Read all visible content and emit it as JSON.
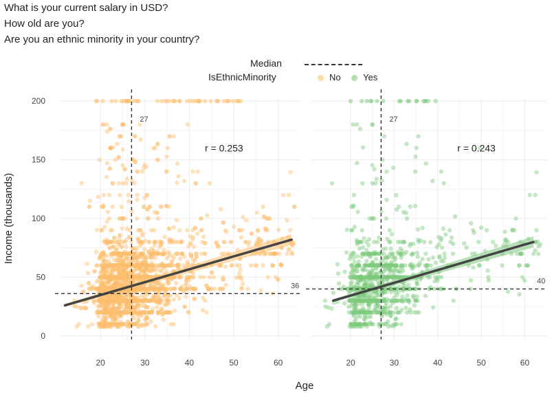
{
  "chart_data": {
    "type": "scatter",
    "title_lines": [
      "What is your current salary in USD?",
      "How old are you?",
      "Are you an ethnic minority in your country?"
    ],
    "legend": {
      "median_label": "Median",
      "group_title": "IsEthnicMinority",
      "groups": [
        {
          "label": "No",
          "color": "#fdbf6f"
        },
        {
          "label": "Yes",
          "color": "#7fc97f"
        }
      ]
    },
    "xlabel": "Age",
    "ylabel": "Income (thousands)",
    "xlim": [
      11,
      65
    ],
    "ylim": [
      -3,
      203
    ],
    "xticks": [
      20,
      30,
      40,
      50,
      60
    ],
    "yticks": [
      0,
      50,
      100,
      150,
      200
    ],
    "grid": true,
    "legend_position": "top",
    "panels": [
      {
        "group": "No",
        "color": "#fdbf6f",
        "line_color": "#444444",
        "r_label": "r = 0.253",
        "median_age": 27,
        "median_age_label": "27",
        "median_income": 36,
        "median_income_label": "36",
        "trend": {
          "x": [
            12,
            63
          ],
          "y": [
            26,
            82
          ]
        },
        "xlim": [
          11,
          65
        ]
      },
      {
        "group": "Yes",
        "color": "#7fc97f",
        "line_color": "#444444",
        "r_label": "r = 0.243",
        "median_age": 27,
        "median_age_label": "27",
        "median_income": 40,
        "median_income_label": "40",
        "trend": {
          "x": [
            16,
            62
          ],
          "y": [
            30,
            80
          ]
        },
        "xlim": [
          11,
          65
        ]
      }
    ]
  }
}
